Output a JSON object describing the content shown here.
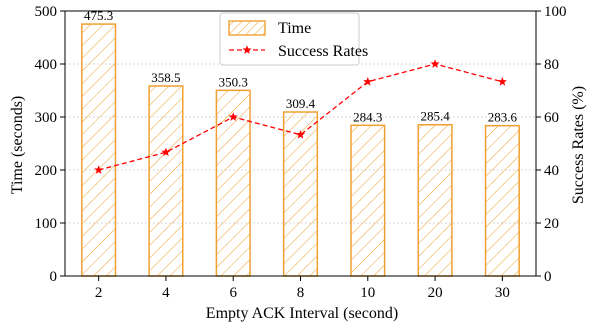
{
  "chart_data": {
    "type": "bar",
    "categories": [
      "2",
      "4",
      "6",
      "8",
      "10",
      "20",
      "30"
    ],
    "series": [
      {
        "name": "Time",
        "type": "bar",
        "axis": "left",
        "values": [
          475.3,
          358.5,
          350.3,
          309.4,
          284.3,
          285.4,
          283.6
        ],
        "data_labels": [
          "475.3",
          "358.5",
          "350.3",
          "309.4",
          "284.3",
          "285.4",
          "283.6"
        ],
        "color": "#f0a030",
        "pattern": "hatch"
      },
      {
        "name": "Success Rates",
        "type": "line",
        "axis": "right",
        "values": [
          40,
          46.7,
          60,
          53.3,
          73.3,
          80,
          73.3
        ],
        "color": "#ff0000",
        "line_style": "dashed",
        "marker": "star"
      }
    ],
    "xlabel": "Empty ACK Interval (second)",
    "ylabel": "Time (seconds)",
    "ylabel_right": "Success Rates (%)",
    "ylim": [
      0,
      500
    ],
    "ylim_right": [
      0,
      100
    ],
    "yticks": [
      "0",
      "100",
      "200",
      "300",
      "400",
      "500"
    ],
    "yticks_right": [
      "0",
      "20",
      "40",
      "60",
      "80",
      "100"
    ],
    "grid": "horizontal-dotted",
    "legend_position": "top-center"
  }
}
